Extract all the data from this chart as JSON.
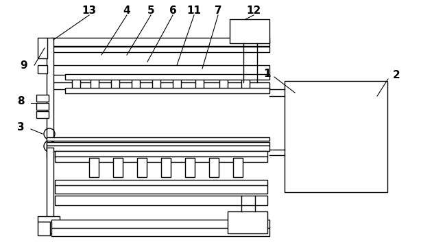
{
  "bg_color": "#ffffff",
  "line_color": "#000000",
  "lw": 1.0,
  "fig_width": 6.14,
  "fig_height": 3.54,
  "label_font": 11
}
